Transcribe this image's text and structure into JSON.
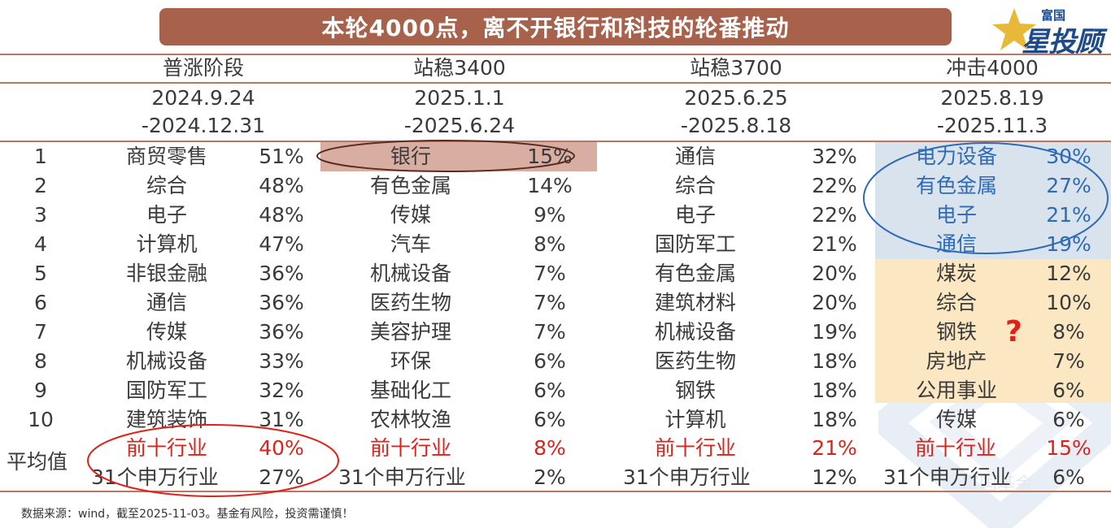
{
  "title": "本轮4000点，离不开银行和科技的轮番推动",
  "logo": {
    "top_text": "富国",
    "main_text": "星投顾"
  },
  "watermark_text": "富国基金",
  "phases": [
    {
      "name": "普涨阶段",
      "date_start": "2024.9.24",
      "date_end": "-2024.12.31"
    },
    {
      "name": "站稳3400",
      "date_start": "2025.1.1",
      "date_end": "-2025.6.24"
    },
    {
      "name": "站稳3700",
      "date_start": "2025.6.25",
      "date_end": "-2025.8.18"
    },
    {
      "name": "冲击4000",
      "date_start": "2025.8.19",
      "date_end": "-2025.11.3"
    }
  ],
  "ranks": [
    "1",
    "2",
    "3",
    "4",
    "5",
    "6",
    "7",
    "8",
    "9",
    "10"
  ],
  "rows": [
    [
      [
        "商贸零售",
        "51%"
      ],
      [
        "银行",
        "15%"
      ],
      [
        "通信",
        "32%"
      ],
      [
        "电力设备",
        "30%"
      ]
    ],
    [
      [
        "综合",
        "48%"
      ],
      [
        "有色金属",
        "14%"
      ],
      [
        "综合",
        "22%"
      ],
      [
        "有色金属",
        "27%"
      ]
    ],
    [
      [
        "电子",
        "48%"
      ],
      [
        "传媒",
        "9%"
      ],
      [
        "电子",
        "22%"
      ],
      [
        "电子",
        "21%"
      ]
    ],
    [
      [
        "计算机",
        "47%"
      ],
      [
        "汽车",
        "8%"
      ],
      [
        "国防军工",
        "21%"
      ],
      [
        "通信",
        "19%"
      ]
    ],
    [
      [
        "非银金融",
        "36%"
      ],
      [
        "机械设备",
        "7%"
      ],
      [
        "有色金属",
        "20%"
      ],
      [
        "煤炭",
        "12%"
      ]
    ],
    [
      [
        "通信",
        "36%"
      ],
      [
        "医药生物",
        "7%"
      ],
      [
        "建筑材料",
        "20%"
      ],
      [
        "综合",
        "10%"
      ]
    ],
    [
      [
        "传媒",
        "36%"
      ],
      [
        "美容护理",
        "7%"
      ],
      [
        "机械设备",
        "19%"
      ],
      [
        "钢铁",
        "8%"
      ]
    ],
    [
      [
        "机械设备",
        "33%"
      ],
      [
        "环保",
        "6%"
      ],
      [
        "医药生物",
        "18%"
      ],
      [
        "房地产",
        "7%"
      ]
    ],
    [
      [
        "国防军工",
        "32%"
      ],
      [
        "基础化工",
        "6%"
      ],
      [
        "钢铁",
        "18%"
      ],
      [
        "公用事业",
        "6%"
      ]
    ],
    [
      [
        "建筑装饰",
        "31%"
      ],
      [
        "农林牧渔",
        "6%"
      ],
      [
        "计算机",
        "18%"
      ],
      [
        "传媒",
        "6%"
      ]
    ]
  ],
  "average": {
    "label": "平均值",
    "top10_label": "前十行业",
    "all_label": "31个申万行业",
    "top10_values": [
      "40%",
      "8%",
      "21%",
      "15%"
    ],
    "all_values": [
      "27%",
      "2%",
      "12%",
      "6%"
    ]
  },
  "question_mark": "?",
  "footer": "数据来源：wind，截至2025-11-03。基金有风险，投资需谨慎！",
  "colors": {
    "title_bg": "#a8624b",
    "rule": "#b67864",
    "highlight_bank": "#d8aea2",
    "highlight_blue": "#d9e3ee",
    "highlight_yellow": "#fbe8c2",
    "accent_red": "#e0211a",
    "accent_blue": "#2f6ab6"
  }
}
